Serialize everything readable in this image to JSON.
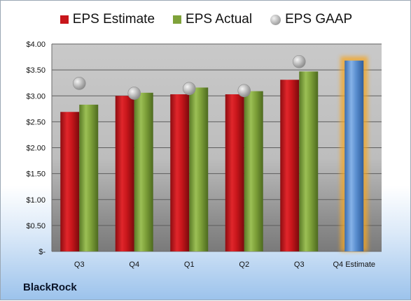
{
  "legend": {
    "estimate_label": "EPS Estimate",
    "actual_label": "EPS Actual",
    "gaap_label": "EPS GAAP"
  },
  "brand": "BlackRock",
  "colors": {
    "estimate": "#c8161b",
    "actual": "#7fa23a",
    "gaap": "#a8a8a8",
    "forecast": "#5b8fd0",
    "forecast_glow": "#f5a623"
  },
  "chart_data": {
    "type": "bar",
    "categories": [
      "Q3",
      "Q4",
      "Q1",
      "Q2",
      "Q3",
      "Q4 Estimate"
    ],
    "series": [
      {
        "name": "EPS Estimate",
        "values": [
          2.69,
          3.0,
          3.03,
          3.03,
          3.31,
          3.68
        ]
      },
      {
        "name": "EPS Actual",
        "values": [
          2.83,
          3.06,
          3.16,
          3.09,
          3.47,
          null
        ]
      },
      {
        "name": "EPS GAAP",
        "values": [
          3.24,
          3.05,
          3.14,
          3.1,
          3.66,
          null
        ]
      }
    ],
    "ylim": [
      0,
      4.0
    ],
    "yticks": [
      0,
      0.5,
      1.0,
      1.5,
      2.0,
      2.5,
      3.0,
      3.5,
      4.0
    ],
    "ytick_labels": [
      "$-",
      "$0.50",
      "$1.00",
      "$1.50",
      "$2.00",
      "$2.50",
      "$3.00",
      "$3.50",
      "$4.00"
    ],
    "grid": true,
    "legend_position": "top"
  }
}
